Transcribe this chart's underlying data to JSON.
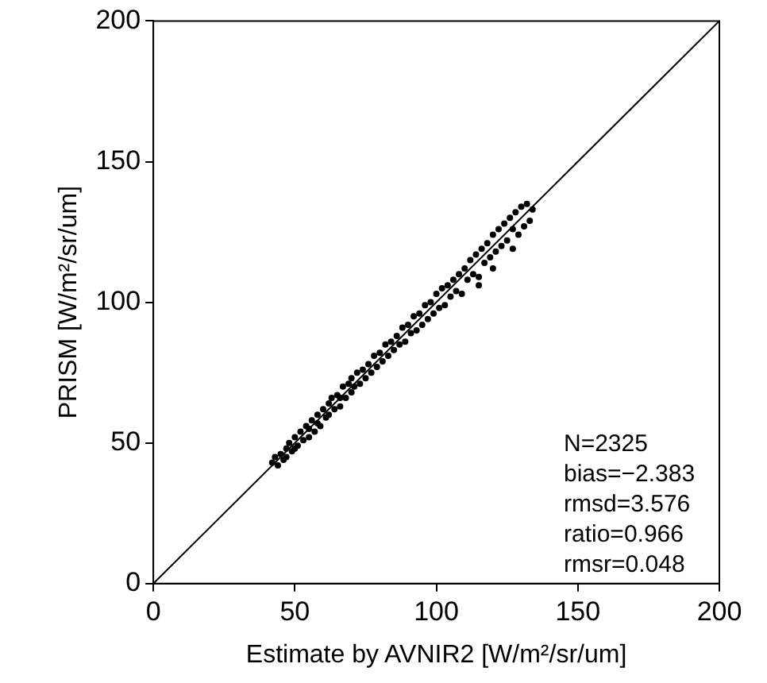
{
  "chart_data": {
    "type": "scatter",
    "xlabel": "Estimate by AVNIR2 [W/m²/sr/um]",
    "ylabel": "PRISM [W/m²/sr/um]",
    "xlim": [
      0,
      200
    ],
    "ylim": [
      0,
      200
    ],
    "xticks": [
      0,
      50,
      100,
      150,
      200
    ],
    "yticks": [
      0,
      50,
      100,
      150,
      200
    ],
    "grid": false,
    "legend": false,
    "marker": "circle",
    "annotations": [
      "N=2325",
      "bias=−2.383",
      "rmsd=3.576",
      "ratio=0.966",
      "rmsr=0.048"
    ],
    "series": [
      {
        "color": "#000000",
        "x": [
          42,
          43,
          44,
          45,
          46,
          47,
          47,
          48,
          49,
          50,
          50,
          51,
          52,
          53,
          54,
          55,
          55,
          56,
          57,
          58,
          58,
          59,
          60,
          61,
          62,
          62,
          63,
          64,
          65,
          66,
          66,
          67,
          68,
          69,
          70,
          70,
          71,
          72,
          73,
          74,
          75,
          76,
          77,
          78,
          79,
          80,
          81,
          82,
          83,
          84,
          85,
          86,
          87,
          88,
          89,
          90,
          91,
          92,
          93,
          94,
          95,
          96,
          97,
          98,
          99,
          100,
          101,
          102,
          103,
          104,
          105,
          106,
          107,
          108,
          109,
          110,
          111,
          112,
          113,
          114,
          115,
          116,
          117,
          118,
          119,
          120,
          121,
          122,
          123,
          124,
          125,
          126,
          127,
          128,
          129,
          130,
          131,
          132,
          133,
          134,
          127,
          120,
          115
        ],
        "values": [
          43,
          45,
          42,
          46,
          44,
          48,
          45,
          50,
          47,
          52,
          48,
          49,
          54,
          51,
          56,
          52,
          55,
          58,
          54,
          60,
          57,
          56,
          62,
          59,
          64,
          60,
          66,
          62,
          67,
          63,
          66,
          70,
          66,
          71,
          68,
          73,
          70,
          75,
          71,
          76,
          73,
          78,
          75,
          81,
          77,
          82,
          79,
          85,
          81,
          86,
          83,
          88,
          85,
          91,
          86,
          92,
          89,
          95,
          90,
          96,
          92,
          99,
          94,
          100,
          96,
          103,
          98,
          105,
          99,
          106,
          102,
          108,
          104,
          110,
          103,
          112,
          108,
          115,
          110,
          117,
          109,
          119,
          114,
          121,
          116,
          124,
          118,
          126,
          120,
          128,
          122,
          130,
          119,
          132,
          124,
          134,
          127,
          135,
          129,
          133,
          126,
          112,
          106
        ]
      },
      {
        "type": "line",
        "color": "#000000",
        "line_style": "solid",
        "marker": "none",
        "x": [
          0,
          200
        ],
        "values": [
          0,
          200
        ]
      }
    ]
  }
}
